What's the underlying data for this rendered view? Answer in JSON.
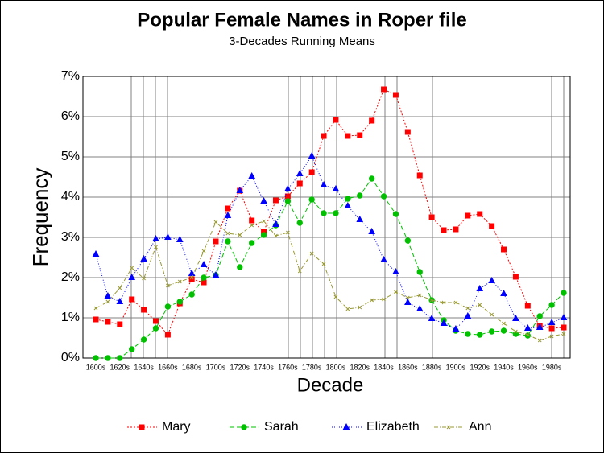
{
  "chart_data": {
    "type": "line",
    "title": "Popular Female Names in Roper file",
    "subtitle": "3-Decades Running Means",
    "x_label": "Decade",
    "y_label": "Frequency",
    "categories": [
      "1600s",
      null,
      "1620s",
      null,
      "1640s",
      null,
      "1660s",
      null,
      "1680s",
      null,
      "1700s",
      null,
      "1720s",
      null,
      "1740s",
      null,
      "1760s",
      null,
      "1780s",
      null,
      "1800s",
      null,
      "1820s",
      null,
      "1840s",
      null,
      "1860s",
      null,
      "1880s",
      null,
      "1900s",
      null,
      "1920s",
      null,
      "1940s",
      null,
      "1960s",
      null,
      "1980s",
      null
    ],
    "ylim": [
      0,
      7
    ],
    "yticks": [
      {
        "value": 0,
        "label": "0%"
      },
      {
        "value": 1,
        "label": "1%"
      },
      {
        "value": 2,
        "label": "2%"
      },
      {
        "value": 3,
        "label": "3%"
      },
      {
        "value": 4,
        "label": "4%"
      },
      {
        "value": 5,
        "label": "5%"
      },
      {
        "value": 6,
        "label": "6%"
      },
      {
        "value": 7,
        "label": "7%"
      }
    ],
    "grid": true,
    "legend": "bottom",
    "series": [
      {
        "name": "Mary",
        "color": "#ff0000",
        "values": [
          0.96,
          0.9,
          0.84,
          1.46,
          1.2,
          0.92,
          0.58,
          1.36,
          1.96,
          1.88,
          2.9,
          3.72,
          4.16,
          3.42,
          3.14,
          3.92,
          4.02,
          4.34,
          4.62,
          5.52,
          5.92,
          5.52,
          5.54,
          5.9,
          6.68,
          6.54,
          5.62,
          4.54,
          3.5,
          3.18,
          3.2,
          3.54,
          3.58,
          3.28,
          2.7,
          2.02,
          1.3,
          0.8,
          0.74,
          0.76
        ]
      },
      {
        "name": "Sarah",
        "color": "#00c000",
        "values": [
          0,
          0,
          0,
          0.22,
          0.46,
          0.74,
          1.28,
          1.4,
          1.58,
          2.0,
          2.06,
          2.9,
          2.26,
          2.86,
          3.06,
          3.3,
          3.9,
          3.36,
          3.94,
          3.6,
          3.6,
          3.96,
          4.04,
          4.46,
          4.02,
          3.58,
          2.92,
          2.14,
          1.44,
          0.94,
          0.68,
          0.6,
          0.58,
          0.66,
          0.68,
          0.6,
          0.56,
          1.04,
          1.32,
          1.62
        ]
      },
      {
        "name": "Elizabeth",
        "color": "#0000ff",
        "values": [
          2.58,
          1.54,
          1.4,
          2.0,
          2.46,
          2.96,
          3.0,
          2.94,
          2.1,
          2.32,
          2.06,
          3.54,
          4.16,
          4.52,
          3.9,
          3.32,
          4.2,
          4.58,
          5.02,
          4.3,
          4.2,
          3.78,
          3.44,
          3.14,
          2.44,
          2.14,
          1.38,
          1.22,
          0.98,
          0.86,
          0.72,
          1.04,
          1.72,
          1.92,
          1.6,
          0.98,
          0.74,
          0.76,
          0.88,
          1.0
        ]
      },
      {
        "name": "Ann",
        "color": "#999933",
        "values": [
          1.24,
          1.4,
          1.74,
          2.24,
          1.98,
          2.76,
          1.8,
          1.9,
          2.0,
          2.66,
          3.38,
          3.1,
          3.06,
          3.3,
          3.4,
          3.04,
          3.12,
          2.16,
          2.6,
          2.34,
          1.52,
          1.22,
          1.26,
          1.44,
          1.46,
          1.64,
          1.5,
          1.56,
          1.44,
          1.38,
          1.38,
          1.24,
          1.32,
          1.08,
          0.86,
          0.66,
          0.58,
          0.44,
          0.54,
          0.6
        ]
      }
    ]
  }
}
